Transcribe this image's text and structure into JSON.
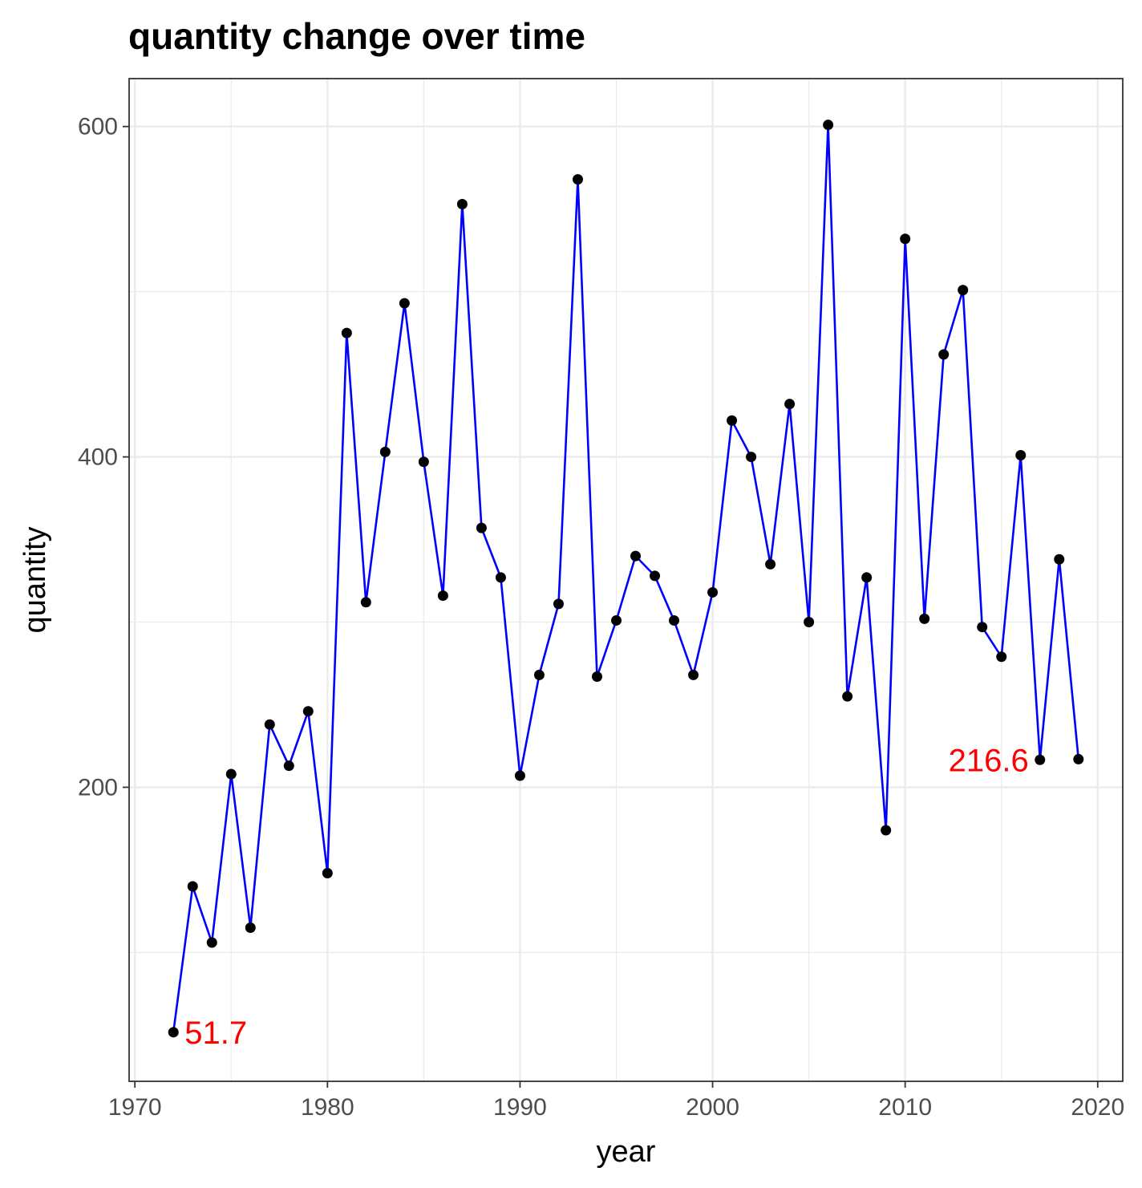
{
  "chart_data": {
    "type": "line",
    "title": "quantity change over time",
    "xlabel": "year",
    "ylabel": "quantity",
    "xlim": [
      1969.7,
      2021.3
    ],
    "ylim": [
      22,
      629
    ],
    "xticks": [
      1970,
      1980,
      1990,
      2000,
      2010,
      2020
    ],
    "yticks": [
      200,
      400,
      600
    ],
    "minor_yticks": [
      100,
      300,
      500
    ],
    "minor_xticks": [
      1975,
      1985,
      1995,
      2005,
      2015
    ],
    "grid": true,
    "legend": "none",
    "colors": {
      "line": "#0000ff",
      "point": "#000000",
      "annotation": "#ff0000",
      "grid": "#ebebeb",
      "panel_border": "#333333",
      "tick_text": "#4d4d4d"
    },
    "series": [
      {
        "name": "quantity",
        "x": [
          1972,
          1973,
          1974,
          1975,
          1976,
          1977,
          1978,
          1979,
          1980,
          1981,
          1982,
          1983,
          1984,
          1985,
          1986,
          1987,
          1988,
          1989,
          1990,
          1991,
          1992,
          1993,
          1994,
          1995,
          1996,
          1997,
          1998,
          1999,
          2000,
          2001,
          2002,
          2003,
          2004,
          2005,
          2006,
          2007,
          2008,
          2009,
          2010,
          2011,
          2012,
          2013,
          2014,
          2015,
          2016,
          2017,
          2018,
          2019
        ],
        "values": [
          51.7,
          140,
          106,
          208,
          115,
          238,
          213,
          246,
          148,
          475,
          312,
          403,
          493,
          397,
          316,
          553,
          357,
          327,
          207,
          268,
          311,
          568,
          267,
          301,
          340,
          328,
          301,
          268,
          318,
          422,
          400,
          335,
          432,
          300,
          601,
          255,
          327,
          174,
          532,
          302,
          462,
          501,
          297,
          279,
          401,
          216.6,
          338,
          217
        ]
      }
    ],
    "annotations": [
      {
        "label": "51.7",
        "x": 1972,
        "y": 51.7,
        "anchor": "start"
      },
      {
        "label": "216.6",
        "x": 2017,
        "y": 216.6,
        "anchor": "end"
      }
    ]
  }
}
